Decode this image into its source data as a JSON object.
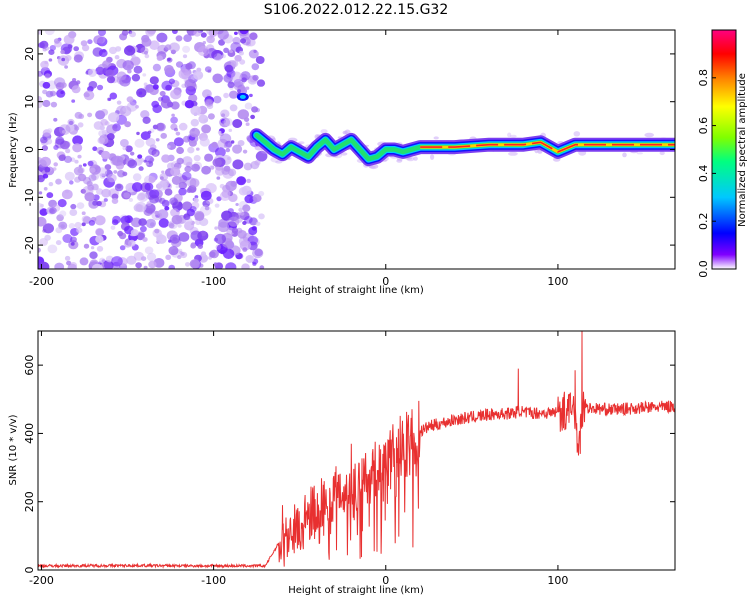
{
  "title": "S106.2022.012.22.15.G32",
  "chart_data": [
    {
      "type": "heatmap",
      "title": "S106.2022.012.22.15.G32",
      "xlabel": "Height of straight line (km)",
      "ylabel": "Frequency (Hz)",
      "xlim": [
        -202,
        168
      ],
      "ylim": [
        -25,
        25
      ],
      "xticks": [
        -200,
        -100,
        0,
        100
      ],
      "yticks": [
        -20,
        -10,
        0,
        10,
        20
      ],
      "colorbar": {
        "label": "Normalized spectral amplitude",
        "range": [
          0,
          1
        ],
        "ticks": [
          0.0,
          0.2,
          0.4,
          0.6,
          0.8
        ],
        "colors": [
          "#ffffff",
          "#8000ff",
          "#0000ff",
          "#00c8ff",
          "#00ff80",
          "#80ff00",
          "#ffff00",
          "#ff8000",
          "#ff0000",
          "#ff0080"
        ]
      },
      "noise_region_x": [
        -202,
        -72
      ],
      "bright_spot": {
        "x": -83,
        "freq": 11
      },
      "ridge": {
        "x": [
          -75,
          -70,
          -65,
          -60,
          -55,
          -50,
          -45,
          -40,
          -35,
          -30,
          -25,
          -20,
          -15,
          -10,
          -5,
          0,
          5,
          10,
          20,
          40,
          60,
          80,
          90,
          100,
          110,
          120,
          140,
          168
        ],
        "freq": [
          3,
          1.5,
          0,
          -1,
          0.5,
          -0.5,
          -1.5,
          0.5,
          2,
          0,
          1,
          2,
          0,
          -2,
          -1.5,
          0,
          0,
          -0.5,
          0.5,
          0.5,
          1,
          1,
          1.5,
          -0.5,
          1,
          1,
          1,
          1
        ]
      }
    },
    {
      "type": "line",
      "xlabel": "Height of straight line (km)",
      "ylabel": "SNR (10 * v/v)",
      "xlim": [
        -202,
        168
      ],
      "ylim": [
        0,
        700
      ],
      "xticks": [
        -200,
        -100,
        0,
        100
      ],
      "yticks": [
        0,
        200,
        400,
        600
      ],
      "series": [
        {
          "name": "SNR",
          "color": "#e83030",
          "x": [
            -202,
            -150,
            -100,
            -70,
            -62,
            -55,
            -45,
            -35,
            -25,
            -15,
            -5,
            5,
            15,
            25,
            40,
            60,
            75,
            78,
            80,
            95,
            110,
            112,
            114,
            116,
            130,
            150,
            168
          ],
          "y": [
            12,
            13,
            12,
            12,
            80,
            120,
            160,
            210,
            240,
            260,
            300,
            350,
            390,
            420,
            440,
            455,
            460,
            470,
            460,
            460,
            470,
            350,
            480,
            475,
            470,
            475,
            480
          ],
          "spikes": [
            {
              "x": -60,
              "y": 190
            },
            {
              "x": -20,
              "y": 370
            },
            {
              "x": 77,
              "y": 590
            },
            {
              "x": 110,
              "y": 585
            },
            {
              "x": 114,
              "y": 700
            },
            {
              "x": 113,
              "y": 340
            }
          ]
        }
      ]
    }
  ]
}
